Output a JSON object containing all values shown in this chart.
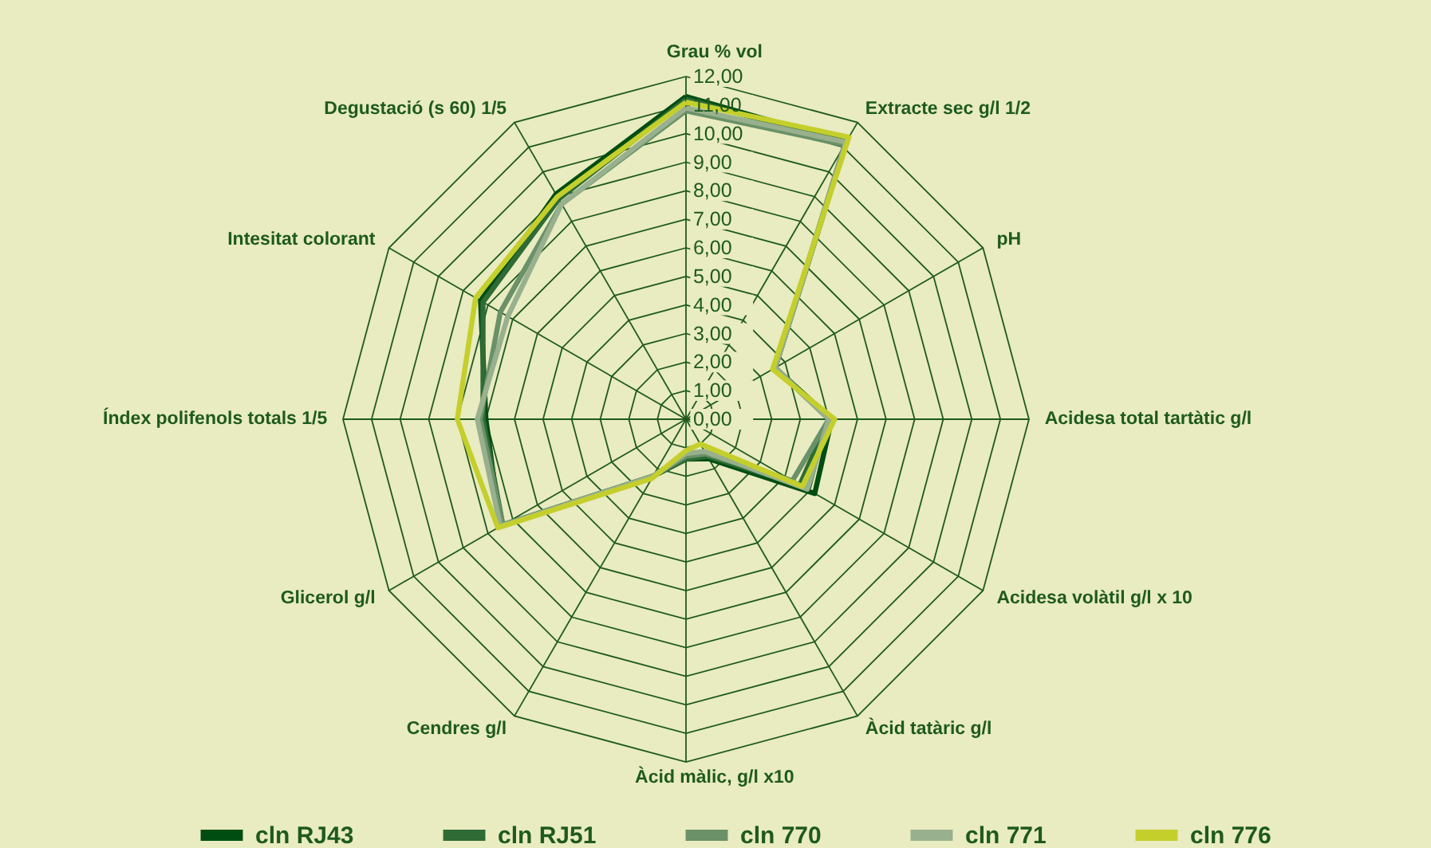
{
  "chart_data": {
    "type": "radar",
    "categories": [
      "Grau % vol",
      "Extracte sec g/l 1/2",
      "pH",
      "Acidesa total tartàtic g/l",
      "Acidesa volàtil g/l x 10",
      "Àcid tatàric g/l",
      "Àcid màlic, g/l x10",
      "Cendres g/l",
      "Glicerol g/l",
      "Índex polifenols totals 1/5",
      "Intesitat colorant",
      "Degustació (s 60) 1/5"
    ],
    "series": [
      {
        "name": "cln RJ43",
        "color": "#004d12",
        "values": [
          11.3,
          11.2,
          3.6,
          5.1,
          5.2,
          1.6,
          1.4,
          2.3,
          7.5,
          7.0,
          8.3,
          9.1
        ]
      },
      {
        "name": "cln RJ51",
        "color": "#2e6b35",
        "values": [
          11.2,
          11.2,
          3.6,
          5.0,
          4.6,
          1.5,
          1.4,
          2.3,
          7.4,
          7.1,
          8.2,
          8.9
        ]
      },
      {
        "name": "cln 770",
        "color": "#6a9168",
        "values": [
          10.8,
          11.1,
          3.6,
          5.0,
          4.3,
          1.4,
          1.3,
          2.3,
          7.4,
          7.2,
          7.5,
          8.7
        ]
      },
      {
        "name": "cln 771",
        "color": "#98b08e",
        "values": [
          10.9,
          11.2,
          3.6,
          5.0,
          4.9,
          1.3,
          1.2,
          2.3,
          7.5,
          7.3,
          7.2,
          8.7
        ]
      },
      {
        "name": "cln 776",
        "color": "#c4cf2c",
        "values": [
          11.1,
          11.4,
          3.5,
          5.2,
          4.7,
          1.0,
          1.1,
          2.4,
          7.6,
          8.0,
          8.5,
          9.0
        ]
      }
    ],
    "ylim": [
      0,
      12
    ],
    "yticks": [
      {
        "value": 0,
        "label": "0,00"
      },
      {
        "value": 1,
        "label": "1,00"
      },
      {
        "value": 2,
        "label": "2,00"
      },
      {
        "value": 3,
        "label": "3,00"
      },
      {
        "value": 4,
        "label": "4,00"
      },
      {
        "value": 5,
        "label": "5,00"
      },
      {
        "value": 6,
        "label": "6,00"
      },
      {
        "value": 7,
        "label": "7,00"
      },
      {
        "value": 8,
        "label": "8,00"
      },
      {
        "value": 9,
        "label": "9,00"
      },
      {
        "value": 10,
        "label": "10,00"
      },
      {
        "value": 11,
        "label": "11,00"
      },
      {
        "value": 12,
        "label": "12,00"
      }
    ],
    "grid": true,
    "legend": "bottom"
  }
}
